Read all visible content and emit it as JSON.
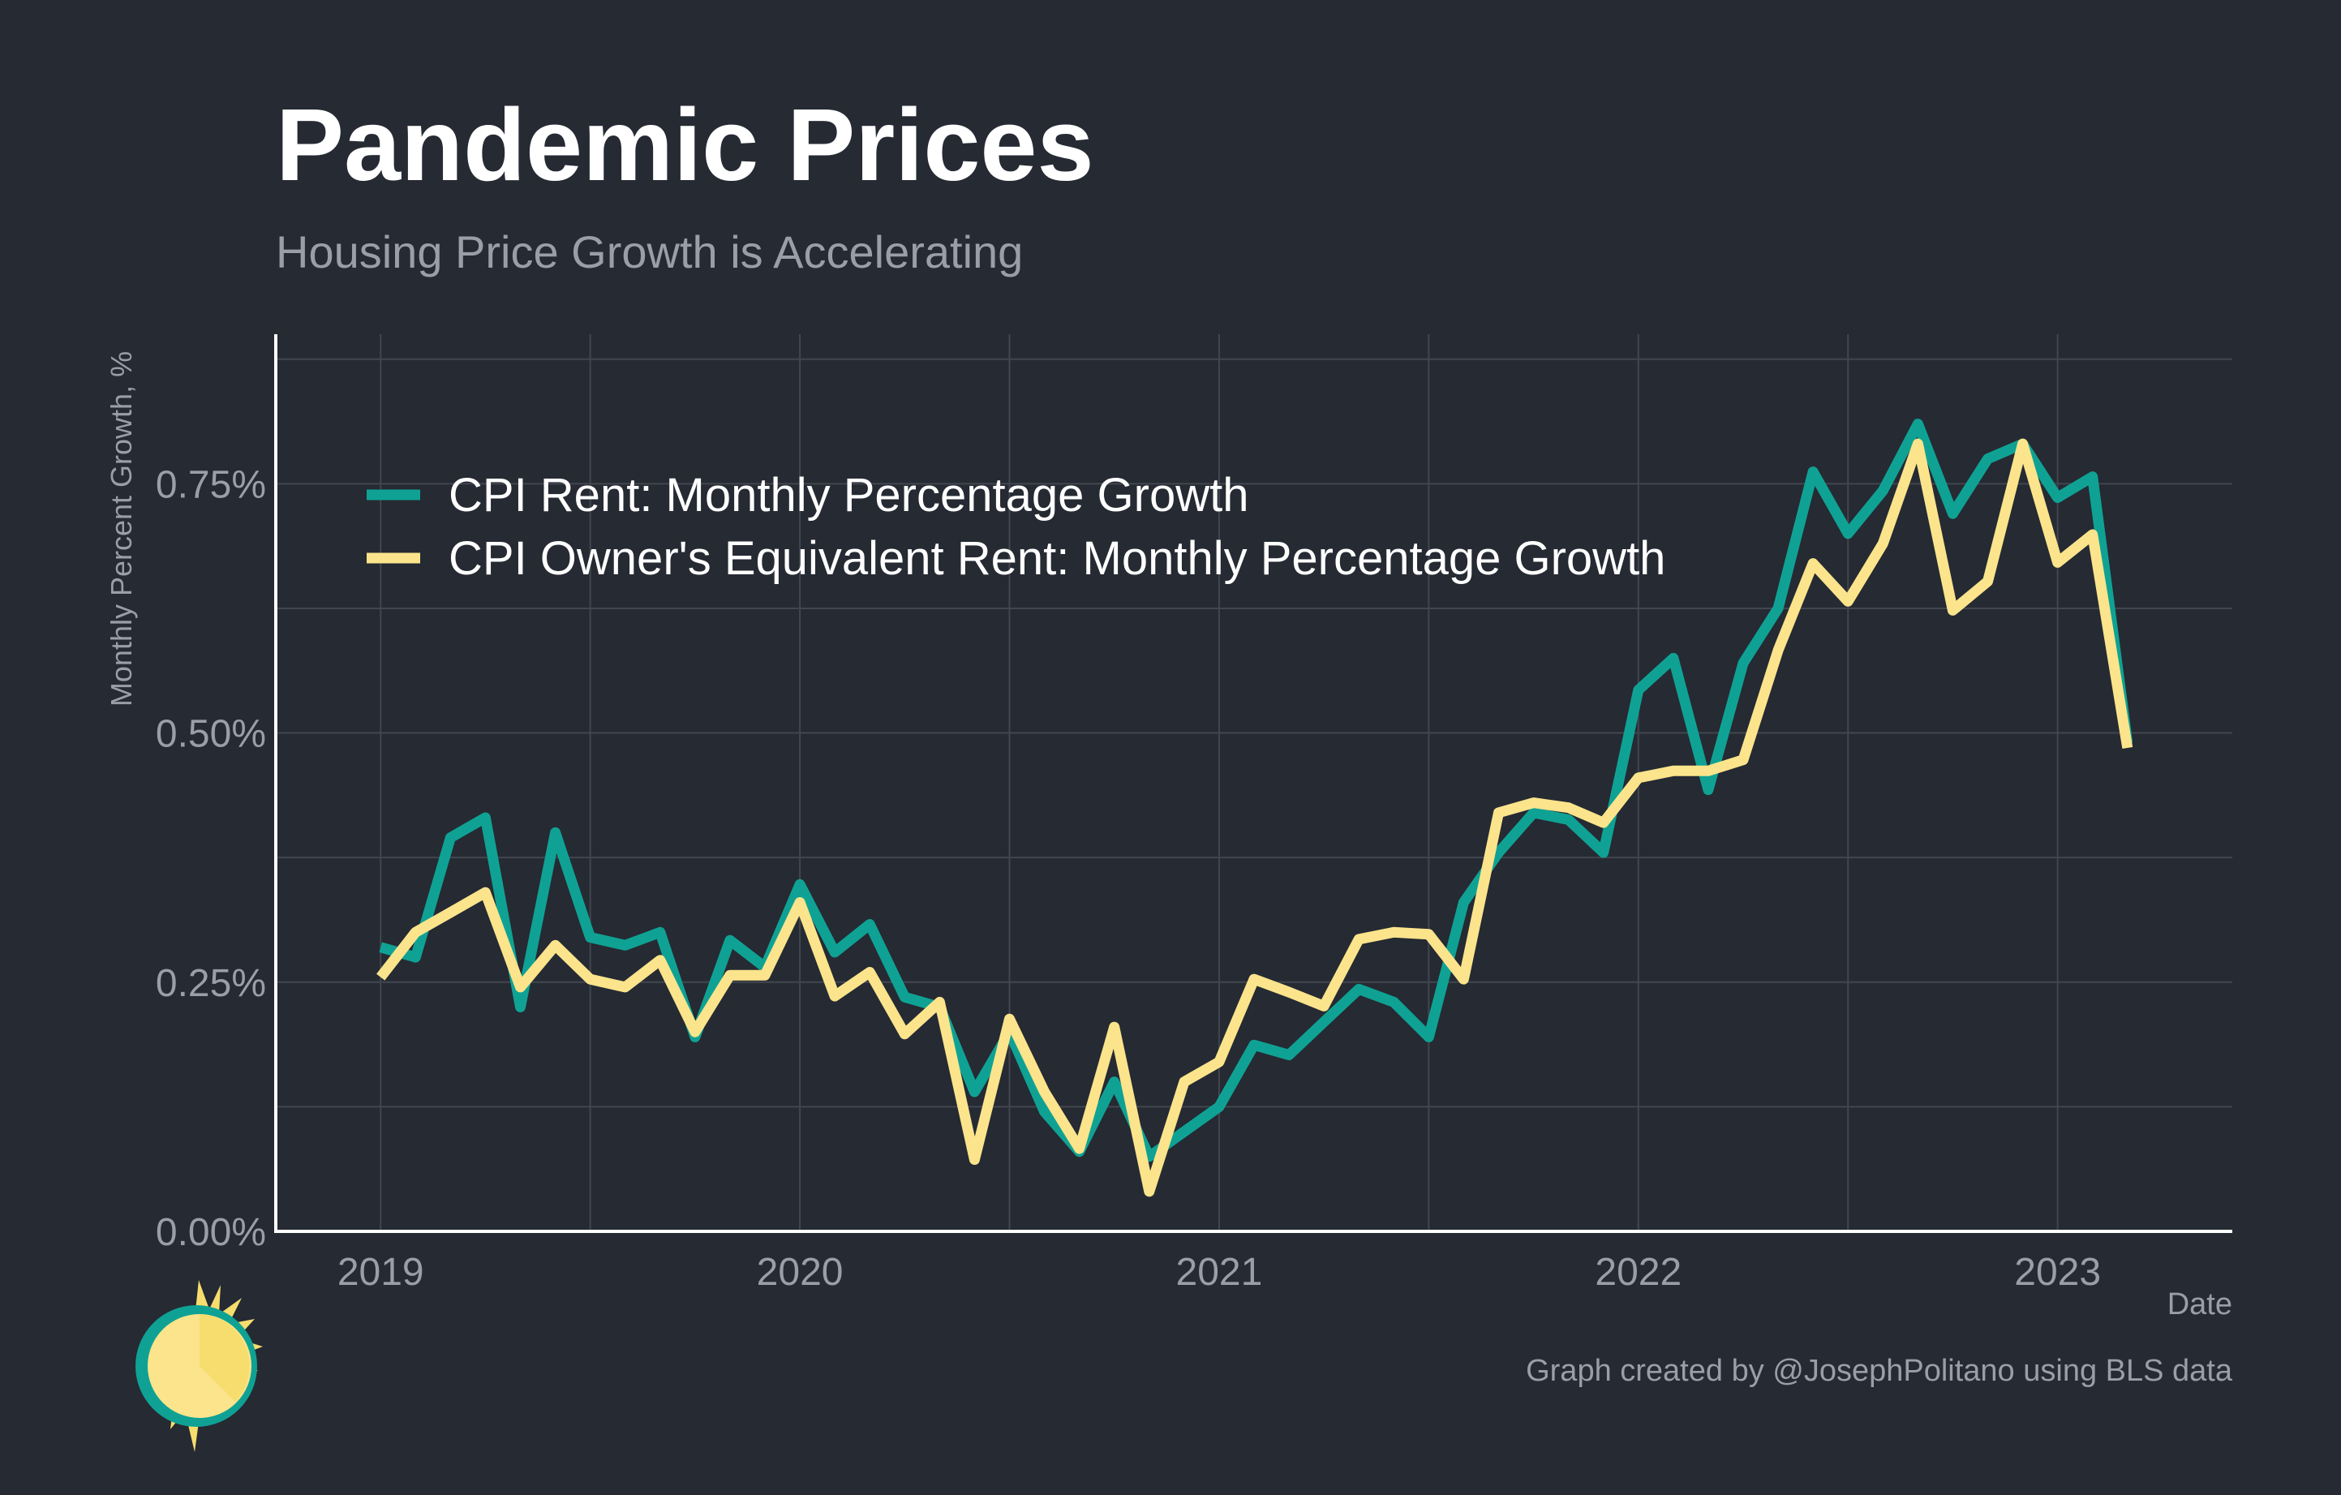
{
  "chart_data": {
    "type": "line",
    "title": "Pandemic Prices",
    "subtitle": "Housing Price Growth is Accelerating",
    "ylabel": "Monthly Percent Growth, %",
    "xlabel": "Date",
    "caption": "Graph created by @JosephPolitano using BLS data",
    "ylim": [
      0,
      0.9
    ],
    "xlim": [
      "2018-10",
      "2023-06"
    ],
    "yticks": [
      0,
      0.25,
      0.5,
      0.75
    ],
    "ytick_labels": [
      "0.00%",
      "0.25%",
      "0.50%",
      "0.75%"
    ],
    "xticks": [
      "2019-01",
      "2020-01",
      "2021-01",
      "2022-01",
      "2023-01"
    ],
    "xtick_labels": [
      "2019",
      "2020",
      "2021",
      "2022",
      "2023"
    ],
    "grid": true,
    "legend_position": "top-left",
    "x": [
      "2019-01",
      "2019-02",
      "2019-03",
      "2019-04",
      "2019-05",
      "2019-06",
      "2019-07",
      "2019-08",
      "2019-09",
      "2019-10",
      "2019-11",
      "2019-12",
      "2020-01",
      "2020-02",
      "2020-03",
      "2020-04",
      "2020-05",
      "2020-06",
      "2020-07",
      "2020-08",
      "2020-09",
      "2020-10",
      "2020-11",
      "2020-12",
      "2021-01",
      "2021-02",
      "2021-03",
      "2021-04",
      "2021-05",
      "2021-06",
      "2021-07",
      "2021-08",
      "2021-09",
      "2021-10",
      "2021-11",
      "2021-12",
      "2022-01",
      "2022-02",
      "2022-03",
      "2022-04",
      "2022-05",
      "2022-06",
      "2022-07",
      "2022-08",
      "2022-09",
      "2022-10",
      "2022-11",
      "2022-12",
      "2023-01",
      "2023-02",
      "2023-03"
    ],
    "series": [
      {
        "name": "CPI Rent: Monthly Percentage Growth",
        "color": "#0fa294",
        "values": [
          0.285,
          0.275,
          0.395,
          0.415,
          0.225,
          0.4,
          0.295,
          0.287,
          0.3,
          0.195,
          0.292,
          0.265,
          0.348,
          0.28,
          0.308,
          0.235,
          0.225,
          0.14,
          0.2,
          0.12,
          0.08,
          0.15,
          0.075,
          0.1,
          0.125,
          0.187,
          0.177,
          0.21,
          0.243,
          0.23,
          0.195,
          0.33,
          0.38,
          0.42,
          0.413,
          0.38,
          0.543,
          0.575,
          0.443,
          0.57,
          0.625,
          0.762,
          0.7,
          0.743,
          0.81,
          0.72,
          0.775,
          0.79,
          0.736,
          0.757,
          0.49
        ]
      },
      {
        "name": "CPI Owner's Equivalent Rent: Monthly Percentage Growth",
        "color": "#fbe48b",
        "values": [
          0.255,
          0.3,
          0.32,
          0.34,
          0.245,
          0.287,
          0.253,
          0.245,
          0.272,
          0.2,
          0.257,
          0.257,
          0.33,
          0.236,
          0.26,
          0.198,
          0.23,
          0.072,
          0.213,
          0.14,
          0.083,
          0.205,
          0.04,
          0.15,
          0.17,
          0.253,
          0.24,
          0.226,
          0.293,
          0.3,
          0.298,
          0.253,
          0.42,
          0.43,
          0.425,
          0.41,
          0.455,
          0.462,
          0.462,
          0.473,
          0.583,
          0.67,
          0.632,
          0.69,
          0.79,
          0.623,
          0.652,
          0.79,
          0.671,
          0.699,
          0.485
        ]
      }
    ]
  },
  "logo": {
    "icon": "sun-icon",
    "colors": [
      "#0fa294",
      "#fbe48b",
      "#f6dd6e"
    ]
  }
}
